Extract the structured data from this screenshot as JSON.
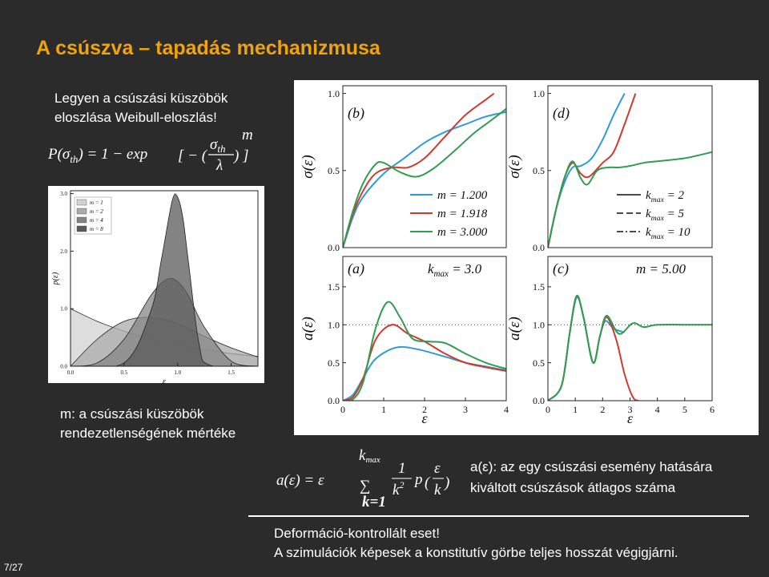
{
  "slide": {
    "title": "A csúszva – tapadás mechanizmusa",
    "intro": [
      "Legyen a csúszási küszöbök",
      "eloszlása Weibull-eloszlás!"
    ],
    "weibull_formula": {
      "lhs": "P(σ",
      "lhs_sub": "th",
      "mid": ") = 1 − exp",
      "open": "[ − (",
      "num": "σ",
      "num_sub": "th",
      "den": "λ",
      "close": ") ]",
      "exp": "m"
    },
    "m_note": [
      "m: a csúszási küszöbök",
      "rendezetlenségének mértéke"
    ],
    "a_formula": {
      "lhs": "a(ε) = ε",
      "sum": "∑",
      "upper": "k",
      "upper_sub": "max",
      "lower": "k=1",
      "num": "1",
      "den": "k",
      "den_exp": "2",
      "p": "p",
      "open": "(",
      "arg_num": "ε",
      "arg_den": "k",
      "close": ")"
    },
    "a_note": [
      "a(ε): az egy csúszási esemény hatására",
      "kiváltott csúszások átlagos száma"
    ],
    "conclusion": [
      "Deformáció-kontrollált eset!",
      "A szimulációk képesek a konstitutív görbe teljes hosszát végigjárni."
    ],
    "page": "7/27"
  },
  "chart_data": [
    {
      "type": "area",
      "x_label": "ε",
      "y_label": "p(ε)",
      "xlim": [
        0,
        1.75
      ],
      "ylim": [
        0,
        3.05
      ],
      "xticks": [
        {
          "value": 0,
          "label": "0.0"
        },
        {
          "value": 0.5,
          "label": "0.5"
        },
        {
          "value": 1,
          "label": "1.0"
        },
        {
          "value": 1.5,
          "label": "1.5"
        }
      ],
      "yticks": [
        {
          "value": 0,
          "label": "0.0"
        },
        {
          "value": 1,
          "label": "1.0"
        },
        {
          "value": 2,
          "label": "2.0"
        },
        {
          "value": 3,
          "label": "3.0"
        }
      ],
      "legend": "upper left",
      "series": [
        {
          "name": "m = 1",
          "color": "#d2d2d2",
          "x": [
            0,
            0.25,
            0.5,
            0.75,
            1,
            1.25,
            1.5,
            1.75
          ],
          "values": [
            1,
            0.78,
            0.61,
            0.47,
            0.37,
            0.29,
            0.22,
            0.17
          ]
        },
        {
          "name": "m = 2",
          "color": "#ababab",
          "x": [
            0,
            0.25,
            0.5,
            0.75,
            1,
            1.25,
            1.5,
            1.75
          ],
          "values": [
            0,
            0.47,
            0.78,
            0.85,
            0.74,
            0.52,
            0.32,
            0.16
          ]
        },
        {
          "name": "m = 4",
          "color": "#858585",
          "x": [
            0,
            0.25,
            0.5,
            0.75,
            0.9,
            1,
            1.1,
            1.25,
            1.5,
            1.75
          ],
          "values": [
            0,
            0.06,
            0.47,
            1.23,
            1.51,
            1.47,
            1.23,
            0.68,
            0.09,
            0
          ]
        },
        {
          "name": "m = 8",
          "color": "#5a5a5a",
          "x": [
            0,
            0.5,
            0.75,
            0.85,
            0.95,
            1,
            1.05,
            1.1,
            1.2,
            1.3,
            1.75
          ],
          "values": [
            0,
            0.06,
            0.96,
            1.87,
            2.88,
            2.94,
            2.57,
            1.83,
            0.39,
            0.02,
            0
          ]
        }
      ]
    },
    {
      "type": "line",
      "panel_label": "(b)",
      "y_label": "σ(ε)",
      "xlim": [
        0,
        4
      ],
      "ylim": [
        0,
        1.05
      ],
      "yticks": [
        {
          "value": 0,
          "label": "0.0"
        },
        {
          "value": 0.5,
          "label": "0.5"
        },
        {
          "value": 1,
          "label": "1.0"
        }
      ],
      "legend": "center right",
      "series": [
        {
          "name": "m = 1.200",
          "color": "#2f9bd6",
          "x": [
            0,
            0.25,
            0.5,
            1,
            1.5,
            2,
            2.5,
            3,
            3.5,
            4
          ],
          "values": [
            0,
            0.2,
            0.33,
            0.48,
            0.58,
            0.68,
            0.75,
            0.8,
            0.85,
            0.88
          ]
        },
        {
          "name": "m = 1.918",
          "color": "#d03a2e",
          "x": [
            0,
            0.25,
            0.5,
            0.8,
            1.2,
            1.6,
            2,
            2.5,
            3,
            3.5,
            3.7
          ],
          "values": [
            0,
            0.22,
            0.37,
            0.48,
            0.52,
            0.52,
            0.58,
            0.72,
            0.86,
            0.96,
            1
          ]
        },
        {
          "name": "m = 3.000",
          "color": "#2e9e50",
          "x": [
            0,
            0.25,
            0.5,
            0.8,
            1,
            1.4,
            1.8,
            2.2,
            2.7,
            3.2,
            3.6,
            4
          ],
          "values": [
            0,
            0.24,
            0.42,
            0.54,
            0.55,
            0.49,
            0.46,
            0.51,
            0.62,
            0.74,
            0.82,
            0.9
          ]
        }
      ]
    },
    {
      "type": "line",
      "panel_label": "(d)",
      "y_label": "σ(ε)",
      "xlim": [
        0,
        6
      ],
      "ylim": [
        0,
        1.05
      ],
      "yticks": [
        {
          "value": 0,
          "label": "0.0"
        },
        {
          "value": 0.5,
          "label": "0.5"
        },
        {
          "value": 1,
          "label": "1.0"
        }
      ],
      "legend": "center right",
      "legend_entries": [
        {
          "style": "solid",
          "parts": [
            {
              "t": "k"
            },
            {
              "sub": "max"
            },
            {
              "t": " = 2"
            }
          ]
        },
        {
          "style": "dashed",
          "parts": [
            {
              "t": "k"
            },
            {
              "sub": "max"
            },
            {
              "t": " = 5"
            }
          ]
        },
        {
          "style": "dashdot",
          "parts": [
            {
              "t": "k"
            },
            {
              "sub": "max"
            },
            {
              "t": " = 10"
            }
          ]
        }
      ],
      "series": [
        {
          "color": "#2f9bd6",
          "x": [
            0,
            0.3,
            0.6,
            0.9,
            1.2,
            1.6,
            2,
            2.4,
            2.8
          ],
          "values": [
            0,
            0.25,
            0.42,
            0.52,
            0.53,
            0.58,
            0.7,
            0.86,
            1
          ]
        },
        {
          "color": "#d03a2e",
          "x": [
            0,
            0.3,
            0.6,
            0.9,
            1.2,
            1.5,
            2,
            2.4,
            2.8,
            3.2
          ],
          "values": [
            0,
            0.25,
            0.45,
            0.55,
            0.48,
            0.46,
            0.55,
            0.62,
            0.8,
            1
          ]
        },
        {
          "color": "#2e9e50",
          "x": [
            0,
            0.3,
            0.6,
            0.9,
            1.2,
            1.45,
            1.8,
            2.2,
            2.6,
            3,
            3.5,
            4,
            5,
            6
          ],
          "values": [
            0,
            0.25,
            0.45,
            0.56,
            0.45,
            0.41,
            0.5,
            0.52,
            0.52,
            0.53,
            0.55,
            0.56,
            0.58,
            0.62
          ]
        }
      ]
    },
    {
      "type": "line",
      "panel_label": "(a)",
      "annotation": [
        {
          "t": "k"
        },
        {
          "sub": "max"
        },
        {
          "t": " = 3.0"
        }
      ],
      "x_label": "ε",
      "y_label": "a(ε)",
      "xlim": [
        0,
        4
      ],
      "ylim": [
        0,
        1.9
      ],
      "xticks": [
        0,
        1,
        2,
        3,
        4
      ],
      "yticks": [
        {
          "value": 0,
          "label": "0.0"
        },
        {
          "value": 0.5,
          "label": "0.5"
        },
        {
          "value": 1,
          "label": "1.0"
        },
        {
          "value": 1.5,
          "label": "1.5"
        }
      ],
      "ref_line": 1,
      "series": [
        {
          "color": "#2f9bd6",
          "x": [
            0,
            0.25,
            0.5,
            0.8,
            1.3,
            1.8,
            2.5,
            3,
            3.5,
            4
          ],
          "values": [
            0,
            0.08,
            0.3,
            0.55,
            0.7,
            0.68,
            0.58,
            0.5,
            0.45,
            0.4
          ]
        },
        {
          "color": "#d03a2e",
          "x": [
            0,
            0.25,
            0.5,
            0.8,
            1.2,
            1.6,
            2,
            2.5,
            3,
            3.5,
            4
          ],
          "values": [
            0,
            0.05,
            0.3,
            0.8,
            1,
            0.88,
            0.78,
            0.62,
            0.5,
            0.44,
            0.39
          ]
        },
        {
          "color": "#2e9e50",
          "x": [
            0,
            0.25,
            0.5,
            0.8,
            1.1,
            1.4,
            1.7,
            2.1,
            2.5,
            3,
            3.5,
            4
          ],
          "values": [
            0,
            0.02,
            0.25,
            0.95,
            1.3,
            1.1,
            0.82,
            0.78,
            0.76,
            0.62,
            0.5,
            0.42
          ]
        }
      ]
    },
    {
      "type": "line",
      "panel_label": "(c)",
      "annotation": [
        {
          "t": "m = 5.00"
        }
      ],
      "x_label": "ε",
      "y_label": "a(ε)",
      "xlim": [
        0,
        6
      ],
      "ylim": [
        0,
        1.9
      ],
      "xticks": [
        0,
        1,
        2,
        3,
        4,
        5,
        6
      ],
      "yticks": [
        {
          "value": 0,
          "label": "0.0"
        },
        {
          "value": 0.5,
          "label": "0.5"
        },
        {
          "value": 1,
          "label": "1.0"
        },
        {
          "value": 1.5,
          "label": "1.5"
        }
      ],
      "ref_line": 1,
      "series": [
        {
          "color": "#2f9bd6",
          "x": [
            0,
            0.5,
            0.8,
            1.05,
            1.3,
            1.65,
            1.9,
            2.1,
            2.4,
            2.8
          ],
          "values": [
            0,
            0.2,
            0.9,
            1.36,
            1.1,
            0.5,
            0.85,
            1.05,
            0.95,
            0.9
          ]
        },
        {
          "color": "#d03a2e",
          "x": [
            0,
            0.5,
            0.8,
            1.05,
            1.3,
            1.65,
            1.9,
            2.15,
            2.5,
            2.8,
            3.1,
            3.3
          ],
          "values": [
            0,
            0.2,
            0.9,
            1.38,
            1.1,
            0.5,
            0.85,
            1.1,
            0.8,
            0.35,
            0.05,
            0
          ]
        },
        {
          "color": "#2e9e50",
          "x": [
            0,
            0.5,
            0.8,
            1.05,
            1.3,
            1.65,
            1.9,
            2.15,
            2.6,
            3.1,
            3.5,
            4,
            5,
            6
          ],
          "values": [
            0,
            0.2,
            0.9,
            1.38,
            1.1,
            0.5,
            0.85,
            1.12,
            0.88,
            1.02,
            0.97,
            1,
            1,
            1
          ]
        }
      ]
    }
  ]
}
